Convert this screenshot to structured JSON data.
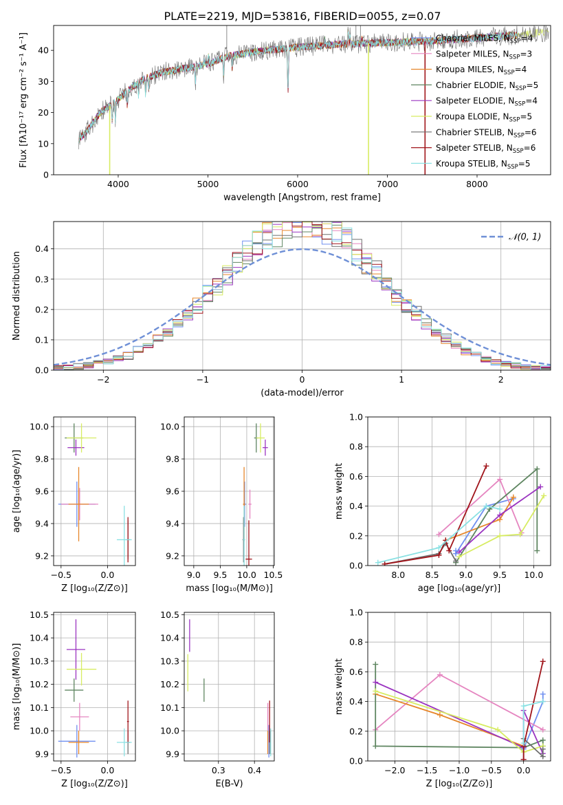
{
  "colors": {
    "Chabrier MILES": "#6f8ff0",
    "Salpeter MILES": "#e585c0",
    "Kroupa MILES": "#e6862a",
    "Chabrier ELODIE": "#5e8560",
    "Salpeter ELODIE": "#9a33c0",
    "Kroupa ELODIE": "#d7ec62",
    "Chabrier STELIB": "#6e6e6e",
    "Salpeter STELIB": "#a0141a",
    "Kroupa STELIB": "#8ae1e3",
    "normal": "#6e8fd6"
  },
  "chart_data": [
    {
      "id": "spectrum",
      "type": "line",
      "title": "PLATE=2219, MJD=53816, FIBERID=0055, z=0.07",
      "xlabel": "wavelength [Angstrom, rest frame]",
      "ylabel": "Flux [fλ10⁻¹⁷ erg cm⁻² s⁻¹ A⁻¹]",
      "xlim": [
        3280,
        8820
      ],
      "ylim": [
        0,
        48
      ],
      "xticks": [
        4000,
        5000,
        6000,
        7000,
        8000
      ],
      "yticks": [
        0,
        10,
        20,
        30,
        40
      ],
      "grid": false,
      "legend_position": "top-right",
      "legend": [
        {
          "text": "Chabrier MILES, N",
          "sub": "SSP",
          "tail": "=4",
          "color_key": "Chabrier MILES"
        },
        {
          "text": "Salpeter MILES, N",
          "sub": "SSP",
          "tail": "=3",
          "color_key": "Salpeter MILES"
        },
        {
          "text": "Kroupa MILES, N",
          "sub": "SSP",
          "tail": "=4",
          "color_key": "Kroupa MILES"
        },
        {
          "text": "Chabrier ELODIE, N",
          "sub": "SSP",
          "tail": "=5",
          "color_key": "Chabrier ELODIE"
        },
        {
          "text": "Salpeter ELODIE, N",
          "sub": "SSP",
          "tail": "=4",
          "color_key": "Salpeter ELODIE"
        },
        {
          "text": "Kroupa ELODIE, N",
          "sub": "SSP",
          "tail": "=5",
          "color_key": "Kroupa ELODIE"
        },
        {
          "text": "Chabrier STELIB, N",
          "sub": "SSP",
          "tail": "=6",
          "color_key": "Chabrier STELIB"
        },
        {
          "text": "Salpeter STELIB, N",
          "sub": "SSP",
          "tail": "=6",
          "color_key": "Salpeter STELIB"
        },
        {
          "text": "Kroupa STELIB, N",
          "sub": "SSP",
          "tail": "=5",
          "color_key": "Kroupa STELIB"
        }
      ],
      "continuum": {
        "x": [
          3550,
          3650,
          3800,
          3950,
          4100,
          4300,
          4500,
          4800,
          5000,
          5200,
          5500,
          6000,
          6500,
          7000,
          7500,
          8000,
          8500,
          8800
        ],
        "y": [
          11,
          14,
          20,
          23,
          27,
          31,
          33,
          34.5,
          35.5,
          38,
          39.5,
          41,
          42,
          42.5,
          43,
          44,
          45,
          46
        ]
      },
      "wavelength_range": [
        3560,
        8800
      ],
      "gap_positions": [
        {
          "x": 3905,
          "series": "Kroupa ELODIE"
        },
        {
          "x": 6790,
          "series": "Kroupa ELODIE"
        },
        {
          "x": 7420,
          "series": "Salpeter STELIB"
        }
      ]
    },
    {
      "id": "residuals",
      "type": "area",
      "xlabel": "(data-model)/error",
      "ylabel": "Normed distribution",
      "xlim": [
        -2.5,
        2.5
      ],
      "ylim": [
        0,
        0.49
      ],
      "xticks": [
        -2,
        -1,
        0,
        1,
        2
      ],
      "xtick_labels": [
        "−2",
        "−1",
        "0",
        "1",
        "2"
      ],
      "yticks": [
        0,
        0.1,
        0.2,
        0.3,
        0.4
      ],
      "ytick_labels": [
        "0.0",
        "0.1",
        "0.2",
        "0.3",
        "0.4"
      ],
      "grid": true,
      "legend_position": "top-right",
      "legend": [
        {
          "text": "𝒩(0, 1)",
          "color_key": "normal"
        }
      ],
      "bin_width": 0.1
    },
    {
      "id": "age-vs-z",
      "type": "scatter",
      "xlabel": "Z [log₁₀(Z/Z⊙)]",
      "ylabel": "age  [log₁₀(age/yr)]",
      "xlim": [
        -0.58,
        0.3
      ],
      "ylim": [
        9.14,
        10.06
      ],
      "xticks": [
        -0.5,
        0.0
      ],
      "xtick_labels": [
        "−0.5",
        "0.0"
      ],
      "yticks": [
        9.2,
        9.4,
        9.6,
        9.8,
        10.0
      ],
      "ytick_labels": [
        "9.2",
        "9.4",
        "9.6",
        "9.8",
        "10.0"
      ],
      "grid": true,
      "points": [
        {
          "c": "Chabrier MILES",
          "x": -0.33,
          "y": 9.52,
          "xerr": 0.2,
          "yerr": 0.14
        },
        {
          "c": "Salpeter MILES",
          "x": -0.3,
          "y": 9.52,
          "xerr": 0.2,
          "yerr": 0.1
        },
        {
          "c": "Kroupa MILES",
          "x": -0.31,
          "y": 9.52,
          "xerr": 0.11,
          "yerr": 0.23
        },
        {
          "c": "Chabrier ELODIE",
          "x": -0.36,
          "y": 9.93,
          "xerr": 0.1,
          "yerr": 0.09
        },
        {
          "c": "Salpeter ELODIE",
          "x": -0.34,
          "y": 9.87,
          "xerr": 0.09,
          "yerr": 0.05
        },
        {
          "c": "Kroupa ELODIE",
          "x": -0.28,
          "y": 9.93,
          "xerr": 0.16,
          "yerr": 0.09
        },
        {
          "c": "Chabrier STELIB",
          "x": 0.22,
          "y": 9.3,
          "xerr": 0.02,
          "yerr": 0.12
        },
        {
          "c": "Salpeter STELIB",
          "x": 0.22,
          "y": 9.3,
          "xerr": 0.01,
          "yerr": 0.14
        },
        {
          "c": "Kroupa STELIB",
          "x": 0.18,
          "y": 9.3,
          "xerr": 0.08,
          "yerr": 0.21
        }
      ]
    },
    {
      "id": "age-vs-mass",
      "type": "scatter",
      "xlabel": "mass [log₁₀(M/M⊙)]",
      "ylabel": "",
      "xlim": [
        8.82,
        10.52
      ],
      "ylim": [
        9.14,
        10.06
      ],
      "xticks": [
        9.0,
        9.5,
        10.0,
        10.5
      ],
      "xtick_labels": [
        "9.0",
        "9.5",
        "10.0",
        "10.5"
      ],
      "yticks": [
        9.2,
        9.4,
        9.6,
        9.8,
        10.0
      ],
      "ytick_labels": [
        "9.2",
        "9.4",
        "9.6",
        "9.8",
        "10.0"
      ],
      "grid": true,
      "points": [
        {
          "c": "Chabrier MILES",
          "x": 9.96,
          "y": 9.52,
          "xerr": 0.03,
          "yerr": 0.14
        },
        {
          "c": "Salpeter MILES",
          "x": 10.06,
          "y": 9.52,
          "xerr": 0.03,
          "yerr": 0.09
        },
        {
          "c": "Kroupa MILES",
          "x": 9.95,
          "y": 9.52,
          "xerr": 0.02,
          "yerr": 0.23
        },
        {
          "c": "Chabrier ELODIE",
          "x": 10.18,
          "y": 9.93,
          "xerr": 0.04,
          "yerr": 0.09
        },
        {
          "c": "Salpeter ELODIE",
          "x": 10.35,
          "y": 9.87,
          "xerr": 0.05,
          "yerr": 0.05
        },
        {
          "c": "Kroupa ELODIE",
          "x": 10.26,
          "y": 9.93,
          "xerr": 0.08,
          "yerr": 0.09
        },
        {
          "c": "Chabrier STELIB",
          "x": 9.94,
          "y": 9.3,
          "xerr": 0.02,
          "yerr": 0.14
        },
        {
          "c": "Salpeter STELIB",
          "x": 10.04,
          "y": 9.18,
          "xerr": 0.06,
          "yerr": 0.24
        },
        {
          "c": "Kroupa STELIB",
          "x": 9.95,
          "y": 9.3,
          "xerr": 0.02,
          "yerr": 0.21
        }
      ]
    },
    {
      "id": "weight-vs-age",
      "type": "line",
      "xlabel": "age  [log₁₀(age/yr)]",
      "ylabel": "mass weight",
      "xlim": [
        7.55,
        10.25
      ],
      "ylim": [
        0,
        1
      ],
      "xticks": [
        8.0,
        8.5,
        9.0,
        9.5,
        10.0
      ],
      "xtick_labels": [
        "8.0",
        "8.5",
        "9.0",
        "9.5",
        "10.0"
      ],
      "yticks": [
        0,
        0.2,
        0.4,
        0.6,
        0.8,
        1.0
      ],
      "ytick_labels": [
        "0.0",
        "0.2",
        "0.4",
        "0.6",
        "0.8",
        "1.0"
      ],
      "grid": true,
      "series": [
        {
          "c": "Chabrier MILES",
          "x": [
            8.85,
            8.85,
            9.3,
            9.7
          ],
          "y": [
            0.1,
            0.08,
            0.4,
            0.45
          ]
        },
        {
          "c": "Salpeter MILES",
          "x": [
            8.6,
            9.5,
            9.82
          ],
          "y": [
            0.21,
            0.58,
            0.22
          ]
        },
        {
          "c": "Kroupa MILES",
          "x": [
            8.7,
            9.5,
            9.7
          ],
          "y": [
            0.17,
            0.31,
            0.46
          ]
        },
        {
          "c": "Chabrier ELODIE",
          "x": [
            8.85,
            9.35,
            10.05,
            10.05
          ],
          "y": [
            0.02,
            0.38,
            0.65,
            0.1
          ]
        },
        {
          "c": "Salpeter ELODIE",
          "x": [
            8.9,
            9.5,
            10.1
          ],
          "y": [
            0.09,
            0.34,
            0.53
          ]
        },
        {
          "c": "Kroupa ELODIE",
          "x": [
            8.9,
            9.5,
            9.8,
            10.15
          ],
          "y": [
            0.06,
            0.2,
            0.21,
            0.47
          ]
        },
        {
          "c": "Chabrier STELIB",
          "x": [
            7.8,
            8.6,
            8.7,
            8.85
          ],
          "y": [
            0.01,
            0.08,
            0.15,
            0.03
          ]
        },
        {
          "c": "Salpeter STELIB",
          "x": [
            7.8,
            8.6,
            8.7,
            8.75,
            9.3
          ],
          "y": [
            0.01,
            0.07,
            0.17,
            0.1,
            0.67
          ]
        },
        {
          "c": "Kroupa STELIB",
          "x": [
            7.7,
            8.6,
            9.3,
            9.5
          ],
          "y": [
            0.02,
            0.12,
            0.4,
            0.38
          ]
        }
      ]
    },
    {
      "id": "mass-vs-z",
      "type": "scatter",
      "xlabel": "Z [log₁₀(Z/Z⊙)]",
      "ylabel": "mass [log₁₀(M/M⊙)]",
      "xlim": [
        -0.58,
        0.3
      ],
      "ylim": [
        9.87,
        10.51
      ],
      "xticks": [
        -0.5,
        0.0
      ],
      "xtick_labels": [
        "−0.5",
        "0.0"
      ],
      "yticks": [
        9.9,
        10.0,
        10.1,
        10.2,
        10.3,
        10.4,
        10.5
      ],
      "ytick_labels": [
        "9.9",
        "10.0",
        "10.1",
        "10.2",
        "10.3",
        "10.4",
        "10.5"
      ],
      "grid": true,
      "points": [
        {
          "c": "Chabrier MILES",
          "x": -0.33,
          "y": 9.955,
          "xerr": 0.2,
          "yerr": 0.07
        },
        {
          "c": "Salpeter MILES",
          "x": -0.3,
          "y": 10.06,
          "xerr": 0.1,
          "yerr": 0.06
        },
        {
          "c": "Kroupa MILES",
          "x": -0.31,
          "y": 9.95,
          "xerr": 0.11,
          "yerr": 0.05
        },
        {
          "c": "Chabrier ELODIE",
          "x": -0.36,
          "y": 10.175,
          "xerr": 0.1,
          "yerr": 0.05
        },
        {
          "c": "Salpeter ELODIE",
          "x": -0.34,
          "y": 10.35,
          "xerr": 0.1,
          "yerr": 0.13
        },
        {
          "c": "Kroupa ELODIE",
          "x": -0.28,
          "y": 10.265,
          "xerr": 0.16,
          "yerr": 0.07
        },
        {
          "c": "Chabrier STELIB",
          "x": 0.22,
          "y": 9.95,
          "xerr": 0.02,
          "yerr": 0.05
        },
        {
          "c": "Salpeter STELIB",
          "x": 0.22,
          "y": 10.04,
          "xerr": 0.01,
          "yerr": 0.09
        },
        {
          "c": "Kroupa STELIB",
          "x": 0.18,
          "y": 9.95,
          "xerr": 0.08,
          "yerr": 0.06
        }
      ]
    },
    {
      "id": "mass-vs-ebv",
      "type": "scatter",
      "xlabel": "E(B-V)",
      "ylabel": "",
      "xlim": [
        0.205,
        0.455
      ],
      "ylim": [
        9.87,
        10.51
      ],
      "xticks": [
        0.3,
        0.4
      ],
      "xtick_labels": [
        "0.3",
        "0.4"
      ],
      "yticks": [
        9.9,
        10.0,
        10.1,
        10.2,
        10.3,
        10.4,
        10.5
      ],
      "ytick_labels": [
        "9.9",
        "10.0",
        "10.1",
        "10.2",
        "10.3",
        "10.4",
        "10.5"
      ],
      "grid": true,
      "points": [
        {
          "c": "Chabrier MILES",
          "x": 0.44,
          "y": 9.955,
          "xerr": 0,
          "yerr": 0.07
        },
        {
          "c": "Salpeter MILES",
          "x": 0.437,
          "y": 10.06,
          "xerr": 0,
          "yerr": 0.06
        },
        {
          "c": "Kroupa MILES",
          "x": 0.437,
          "y": 9.95,
          "xerr": 0,
          "yerr": 0.05
        },
        {
          "c": "Chabrier ELODIE",
          "x": 0.26,
          "y": 10.175,
          "xerr": 0,
          "yerr": 0.05
        },
        {
          "c": "Salpeter ELODIE",
          "x": 0.22,
          "y": 10.41,
          "xerr": 0,
          "yerr": 0.07
        },
        {
          "c": "Kroupa ELODIE",
          "x": 0.215,
          "y": 10.25,
          "xerr": 0,
          "yerr": 0.08
        },
        {
          "c": "Chabrier STELIB",
          "x": 0.443,
          "y": 9.95,
          "xerr": 0,
          "yerr": 0.05
        },
        {
          "c": "Salpeter STELIB",
          "x": 0.442,
          "y": 10.04,
          "xerr": 0,
          "yerr": 0.09
        },
        {
          "c": "Kroupa STELIB",
          "x": 0.445,
          "y": 9.95,
          "xerr": 0,
          "yerr": 0.06
        }
      ]
    },
    {
      "id": "weight-vs-z",
      "type": "line",
      "xlabel": "Z [log₁₀(Z/Z⊙)]",
      "ylabel": "mass weight",
      "xlim": [
        -2.42,
        0.42
      ],
      "ylim": [
        0,
        1
      ],
      "xticks": [
        -2.0,
        -1.5,
        -1.0,
        -0.5,
        0.0
      ],
      "xtick_labels": [
        "−2.0",
        "−1.5",
        "−1.0",
        "−0.5",
        "0.0"
      ],
      "yticks": [
        0,
        0.2,
        0.4,
        0.6,
        0.8,
        1.0
      ],
      "ytick_labels": [
        "0.0",
        "0.2",
        "0.4",
        "0.6",
        "0.8",
        "1.0"
      ],
      "grid": true,
      "series": [
        {
          "c": "Chabrier MILES",
          "x": [
            0.0,
            0.0,
            0.3,
            0.3
          ],
          "y": [
            0.1,
            0.08,
            0.4,
            0.45
          ]
        },
        {
          "c": "Salpeter MILES",
          "x": [
            -2.3,
            -1.3,
            0.3
          ],
          "y": [
            0.21,
            0.58,
            0.21
          ]
        },
        {
          "c": "Kroupa MILES",
          "x": [
            -2.3,
            -1.3,
            0.0
          ],
          "y": [
            0.45,
            0.31,
            0.1
          ]
        },
        {
          "c": "Chabrier ELODIE",
          "x": [
            -2.3,
            -2.3,
            0.0,
            0.3,
            0.3
          ],
          "y": [
            0.65,
            0.1,
            0.09,
            0.14,
            0.1
          ]
        },
        {
          "c": "Salpeter ELODIE",
          "x": [
            -2.3,
            0.0,
            0.0,
            0.3
          ],
          "y": [
            0.53,
            0.09,
            0.34,
            0.05
          ]
        },
        {
          "c": "Kroupa ELODIE",
          "x": [
            -2.3,
            -0.4,
            0.0,
            0.3
          ],
          "y": [
            0.47,
            0.21,
            0.06,
            0.1
          ]
        },
        {
          "c": "Chabrier STELIB",
          "x": [
            0.0,
            0.0,
            0.3,
            0.3
          ],
          "y": [
            0.01,
            0.15,
            0.03,
            0.08
          ]
        },
        {
          "c": "Salpeter STELIB",
          "x": [
            0.0,
            0.0,
            0.3
          ],
          "y": [
            0.01,
            0.1,
            0.67
          ]
        },
        {
          "c": "Kroupa STELIB",
          "x": [
            0.0,
            0.0,
            0.3
          ],
          "y": [
            0.12,
            0.37,
            0.4
          ]
        }
      ]
    }
  ]
}
